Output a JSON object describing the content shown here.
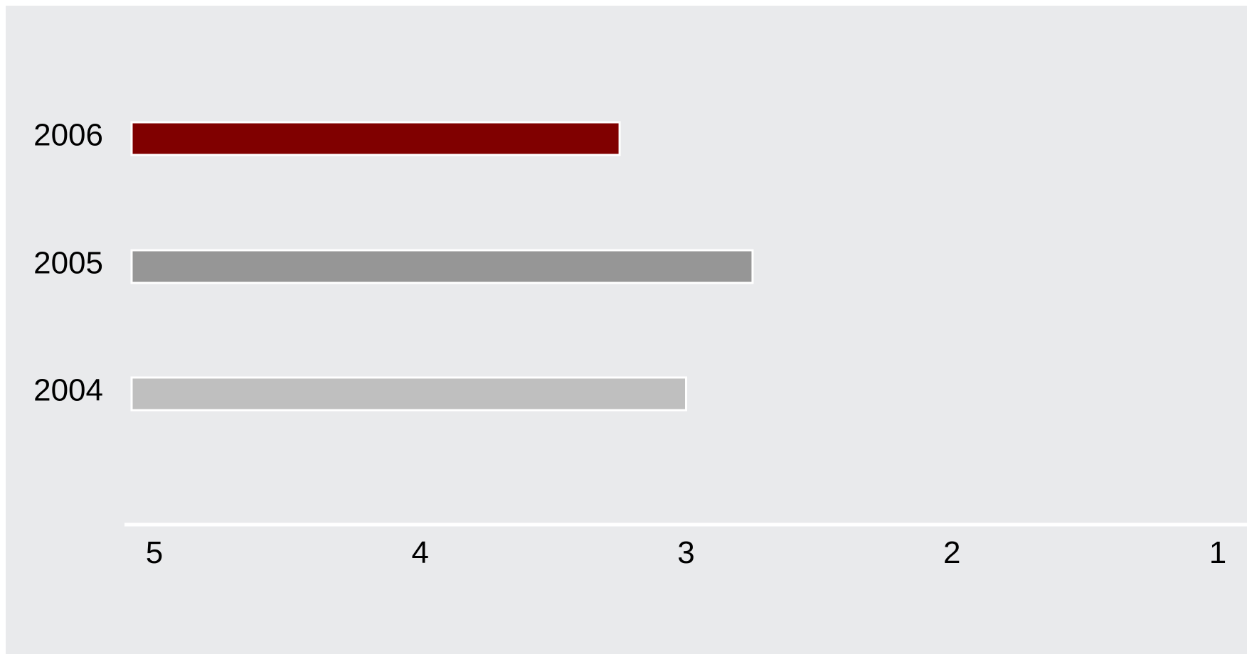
{
  "chart_data": {
    "type": "bar",
    "orientation": "horizontal",
    "categories": [
      "2006",
      "2005",
      "2004"
    ],
    "values": [
      3.25,
      2.75,
      3.0
    ],
    "bar_colors": [
      "#800000",
      "#969696",
      "#bfbfbf"
    ],
    "xlim": [
      5,
      1
    ],
    "x_reversed": true,
    "xticks": [
      "5",
      "4",
      "3",
      "2",
      "1"
    ],
    "title": "",
    "xlabel": "",
    "ylabel": "",
    "grid": false,
    "background": "#e9eaec"
  }
}
